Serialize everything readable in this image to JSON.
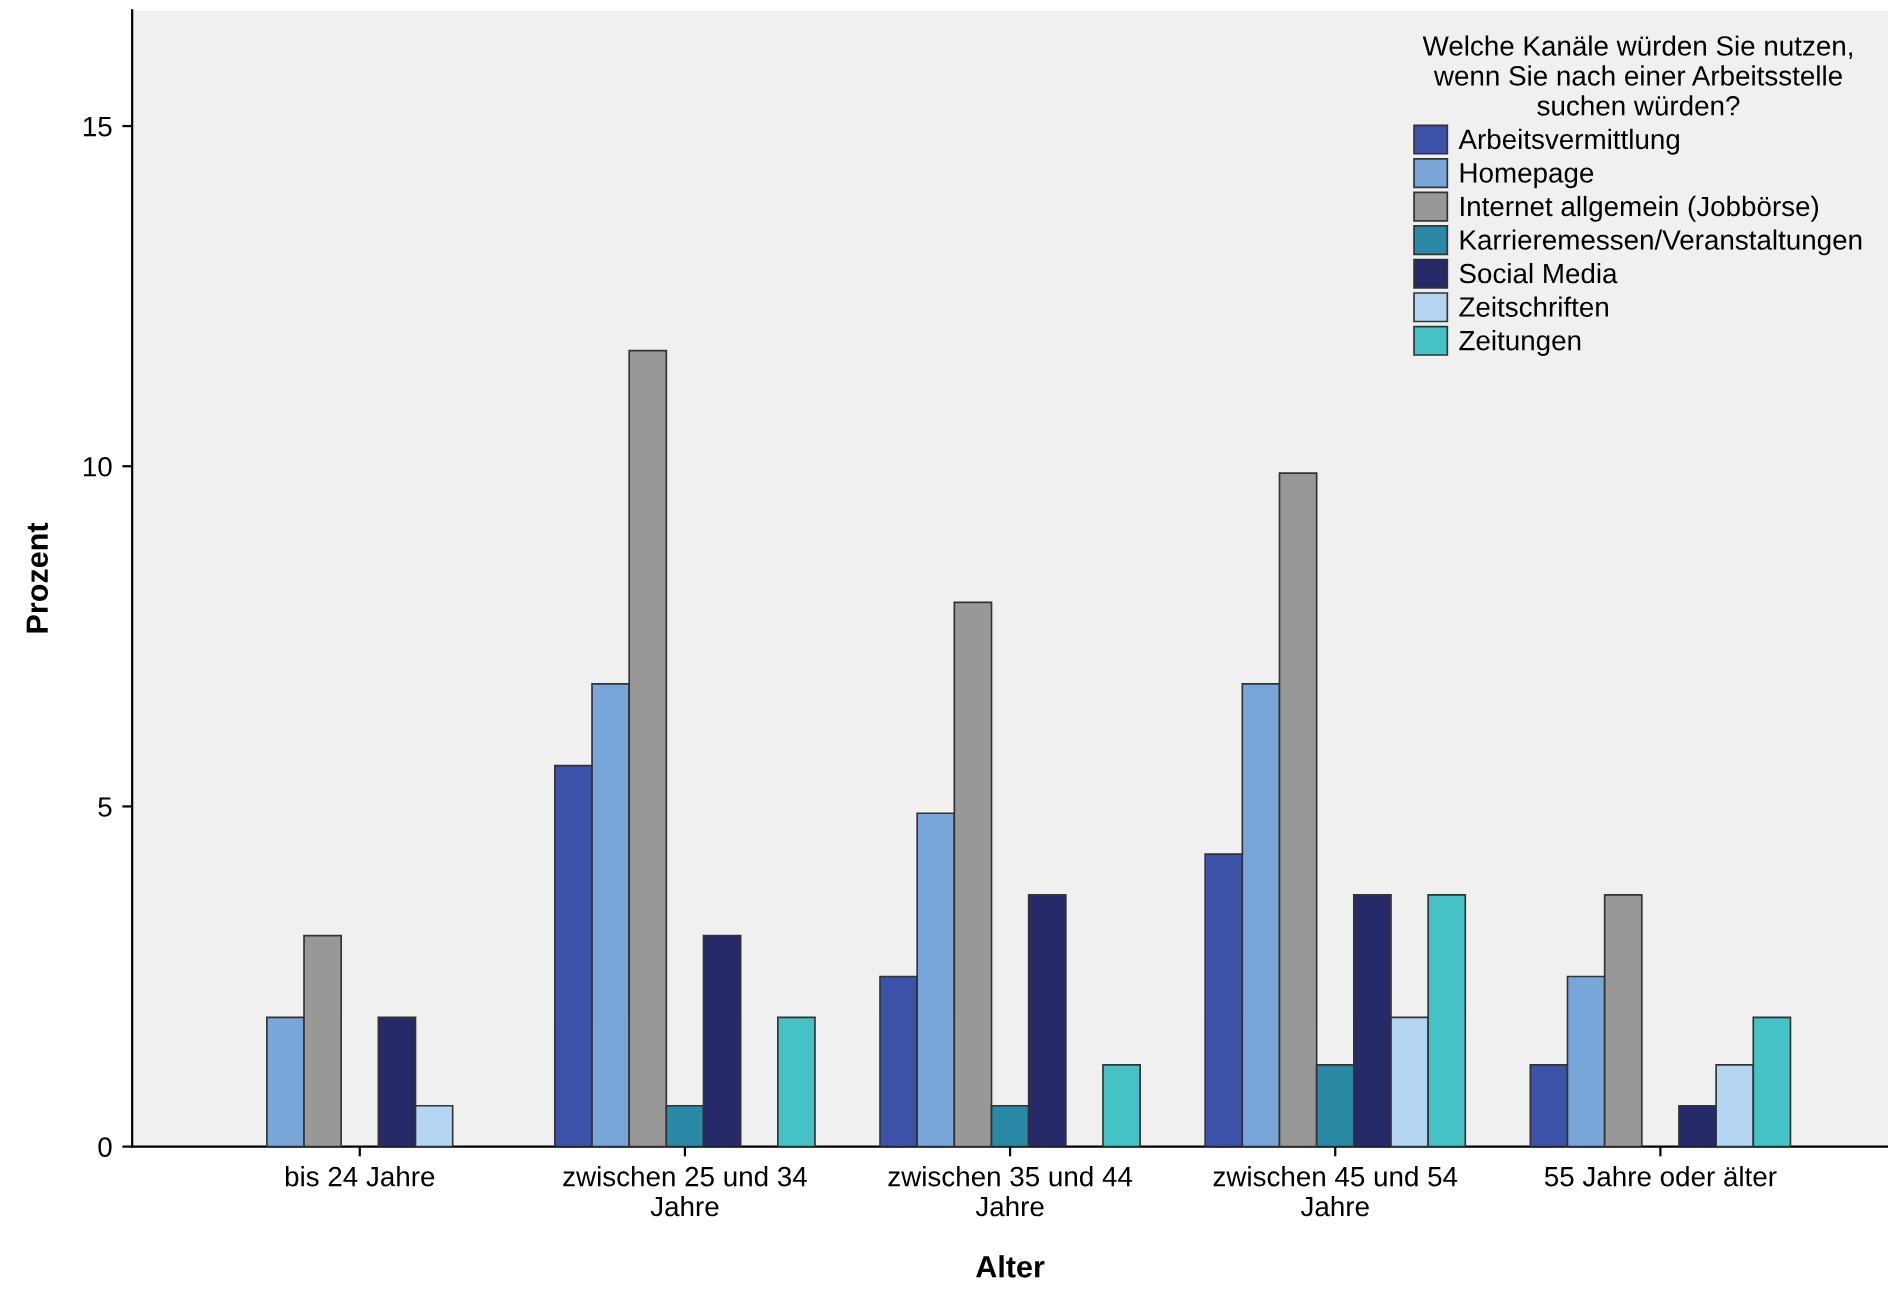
{
  "chart_data": {
    "type": "bar",
    "xlabel": "Alter",
    "ylabel": "Prozent",
    "legend_title": "Welche Kanäle würden Sie nutzen,\nwenn Sie nach einer Arbeitsstelle\nsuchen würden?",
    "categories": [
      "bis 24 Jahre",
      "zwischen 25 und 34\nJahre",
      "zwischen 35 und 44\nJahre",
      "zwischen 45 und 54\nJahre",
      "55 Jahre oder älter"
    ],
    "series": [
      {
        "name": "Arbeitsvermittlung",
        "color": "#3c52a8",
        "values": [
          null,
          5.6,
          2.5,
          4.3,
          1.2
        ]
      },
      {
        "name": "Homepage",
        "color": "#79a6d9",
        "values": [
          1.9,
          6.8,
          4.9,
          6.8,
          2.5
        ]
      },
      {
        "name": "Internet allgemein (Jobbörse)",
        "color": "#989898",
        "values": [
          3.1,
          11.7,
          8.0,
          9.9,
          3.7
        ]
      },
      {
        "name": "Karrieremessen/Veranstaltungen",
        "color": "#2a8aa5",
        "values": [
          null,
          0.6,
          0.6,
          1.2,
          null
        ]
      },
      {
        "name": "Social Media",
        "color": "#262a68",
        "values": [
          1.9,
          3.1,
          3.7,
          3.7,
          0.6
        ]
      },
      {
        "name": "Zeitschriften",
        "color": "#b5d6f2",
        "values": [
          0.6,
          null,
          null,
          1.9,
          1.2
        ]
      },
      {
        "name": "Zeitungen",
        "color": "#44c2c6",
        "values": [
          null,
          1.9,
          1.2,
          3.7,
          1.9
        ]
      }
    ],
    "ylim": [
      0,
      16.7
    ],
    "yticks": [
      0,
      5,
      10,
      15
    ],
    "grid": false,
    "legend": "top right"
  }
}
